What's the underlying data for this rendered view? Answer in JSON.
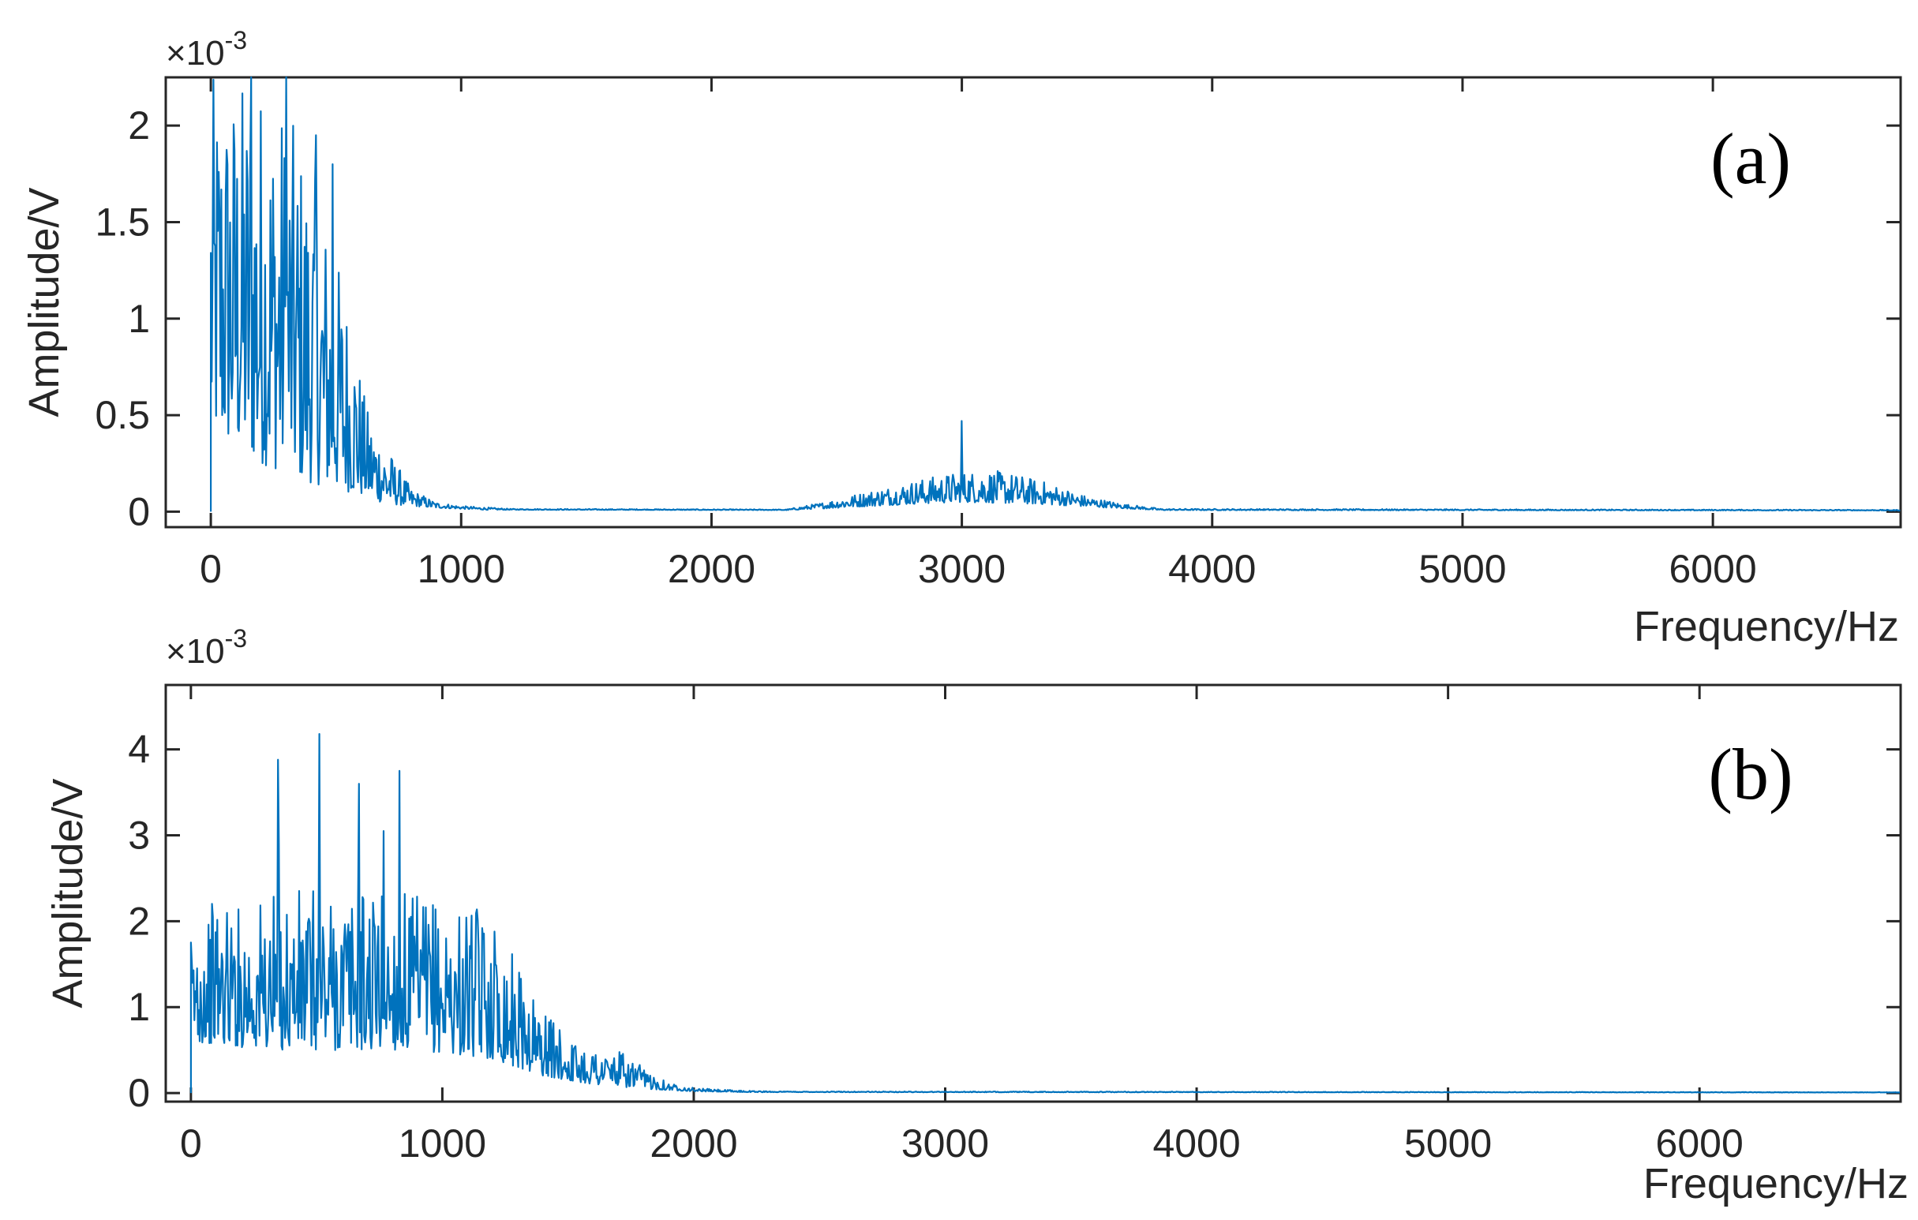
{
  "colors": {
    "series": "#0072bd",
    "axis": "#262626",
    "background": "#ffffff"
  },
  "chart_data": [
    {
      "type": "line",
      "panel_label": "(a)",
      "xlabel": "Frequency/Hz",
      "ylabel": "Amplitude/V",
      "y_exponent": "×10",
      "y_exponent_power": "-3",
      "xlim": [
        -180,
        6750
      ],
      "ylim": [
        -0.08,
        2.25
      ],
      "xticks": [
        0,
        1000,
        2000,
        3000,
        4000,
        5000,
        6000
      ],
      "xtick_labels": [
        "0",
        "1000",
        "2000",
        "3000",
        "4000",
        "5000",
        "6000"
      ],
      "yticks": [
        0,
        0.5,
        1,
        1.5,
        2
      ],
      "ytick_labels": [
        "0",
        "0.5",
        "1",
        "1.5",
        "2"
      ],
      "grid": false,
      "series": [
        {
          "envelope": [
            [
              0,
              2.25
            ],
            [
              80,
              2.25
            ],
            [
              200,
              2.25
            ],
            [
              300,
              2.1
            ],
            [
              400,
              1.8
            ],
            [
              500,
              1.35
            ],
            [
              560,
              1.05
            ],
            [
              620,
              0.55
            ],
            [
              700,
              0.35
            ],
            [
              800,
              0.12
            ],
            [
              900,
              0.05
            ],
            [
              1000,
              0.03
            ],
            [
              1200,
              0.015
            ],
            [
              2300,
              0.012
            ],
            [
              2450,
              0.05
            ],
            [
              2600,
              0.1
            ],
            [
              2800,
              0.16
            ],
            [
              2950,
              0.2
            ],
            [
              3100,
              0.22
            ],
            [
              3200,
              0.2
            ],
            [
              3350,
              0.15
            ],
            [
              3500,
              0.08
            ],
            [
              3650,
              0.04
            ],
            [
              3800,
              0.015
            ],
            [
              6750,
              0.01
            ]
          ],
          "floor": [
            [
              0,
              0.4
            ],
            [
              200,
              0.25
            ],
            [
              400,
              0.15
            ],
            [
              560,
              0.1
            ],
            [
              700,
              0.04
            ],
            [
              900,
              0.02
            ],
            [
              1100,
              0.01
            ],
            [
              2300,
              0.008
            ],
            [
              2500,
              0.02
            ],
            [
              2800,
              0.04
            ],
            [
              3000,
              0.05
            ],
            [
              3300,
              0.04
            ],
            [
              3600,
              0.02
            ],
            [
              3800,
              0.008
            ],
            [
              6750,
              0.006
            ]
          ],
          "peaks": [
            [
              3000,
              0.47
            ],
            [
              420,
              1.95
            ],
            [
              485,
              1.8
            ],
            [
              300,
              2.25
            ],
            [
              160,
              2.25
            ]
          ]
        }
      ]
    },
    {
      "type": "line",
      "panel_label": "(b)",
      "xlabel": "Frequency/Hz",
      "ylabel": "Amplitude/V",
      "y_exponent": "×10",
      "y_exponent_power": "-3",
      "xlim": [
        -100,
        6800
      ],
      "ylim": [
        -0.1,
        4.75
      ],
      "xticks": [
        0,
        1000,
        2000,
        3000,
        4000,
        5000,
        6000
      ],
      "xtick_labels": [
        "0",
        "1000",
        "2000",
        "3000",
        "4000",
        "5000",
        "6000"
      ],
      "yticks": [
        0,
        1,
        2,
        3,
        4
      ],
      "ytick_labels": [
        "0",
        "1",
        "2",
        "3",
        "4"
      ],
      "grid": false,
      "series": [
        {
          "envelope": [
            [
              0,
              1.9
            ],
            [
              100,
              2.3
            ],
            [
              200,
              2.2
            ],
            [
              300,
              2.3
            ],
            [
              500,
              2.4
            ],
            [
              700,
              2.4
            ],
            [
              900,
              2.3
            ],
            [
              1050,
              2.2
            ],
            [
              1200,
              2.1
            ],
            [
              1300,
              1.5
            ],
            [
              1400,
              1.0
            ],
            [
              1500,
              0.6
            ],
            [
              1600,
              0.55
            ],
            [
              1700,
              0.5
            ],
            [
              1800,
              0.3
            ],
            [
              1900,
              0.12
            ],
            [
              2000,
              0.06
            ],
            [
              2100,
              0.04
            ],
            [
              2300,
              0.02
            ],
            [
              6800,
              0.01
            ]
          ],
          "floor": [
            [
              0,
              0.6
            ],
            [
              300,
              0.5
            ],
            [
              600,
              0.5
            ],
            [
              900,
              0.5
            ],
            [
              1200,
              0.4
            ],
            [
              1400,
              0.2
            ],
            [
              1600,
              0.1
            ],
            [
              1800,
              0.05
            ],
            [
              2000,
              0.02
            ],
            [
              2200,
              0.01
            ],
            [
              6800,
              0.006
            ]
          ],
          "peaks": [
            [
              345,
              3.88
            ],
            [
              510,
              4.18
            ],
            [
              670,
              3.6
            ],
            [
              830,
              3.75
            ],
            [
              765,
              3.05
            ],
            [
              350,
              2.9
            ]
          ]
        }
      ]
    }
  ]
}
